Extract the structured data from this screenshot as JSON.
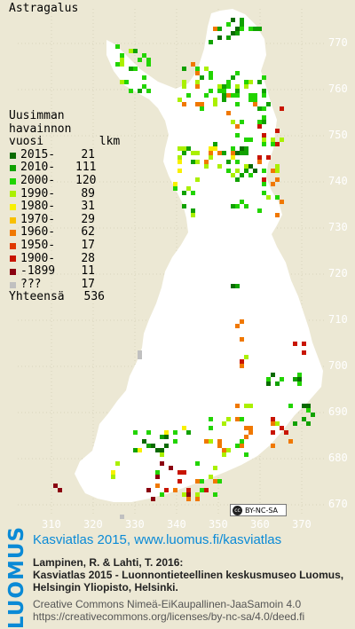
{
  "title": "Astragalus",
  "legend": {
    "header": [
      "Uusimman",
      "havainnon",
      "vuosi        lkm"
    ],
    "items": [
      {
        "label": "2015-",
        "count": "21",
        "color": "#0a6a00"
      },
      {
        "label": "2010-",
        "count": "111",
        "color": "#11a100"
      },
      {
        "label": "2000-",
        "count": "120",
        "color": "#22d400"
      },
      {
        "label": "1990-",
        "count": "89",
        "color": "#aaf000"
      },
      {
        "label": "1980-",
        "count": "31",
        "color": "#f8f000"
      },
      {
        "label": "1970-",
        "count": "29",
        "color": "#f8c000"
      },
      {
        "label": "1960-",
        "count": "62",
        "color": "#f07800"
      },
      {
        "label": "1950-",
        "count": "17",
        "color": "#e03800"
      },
      {
        "label": "1900-",
        "count": "28",
        "color": "#c81400"
      },
      {
        "label": "-1899",
        "count": "11",
        "color": "#8a0010"
      },
      {
        "label": "???",
        "count": "17",
        "color": "#c0c0c0"
      }
    ],
    "total_label": "Yhteensä",
    "total_count": "536"
  },
  "axes": {
    "y": [
      "770",
      "760",
      "750",
      "740",
      "730",
      "720",
      "710",
      "700",
      "690",
      "680",
      "670"
    ],
    "x": [
      "310",
      "320",
      "330",
      "340",
      "350",
      "360",
      "370"
    ]
  },
  "license_badge": "BY-NC-SA",
  "logo_text": "LUOMUS",
  "credits": {
    "line1": "Kasviatlas 2015, www.luomus.fi/kasviatlas",
    "line2": "Lampinen, R. & Lahti, T. 2016:",
    "line3": "Kasviatlas 2015 - Luonnontieteellinen keskusmuseo Luomus,",
    "line4": "Helsingin Yliopisto, Helsinki.",
    "line5": "Creative Commons Nimeä-EiKaupallinen-JaaSamoin 4.0",
    "line6": "https://creativecommons.org/licenses/by-nc-sa/4.0/deed.fi"
  }
}
